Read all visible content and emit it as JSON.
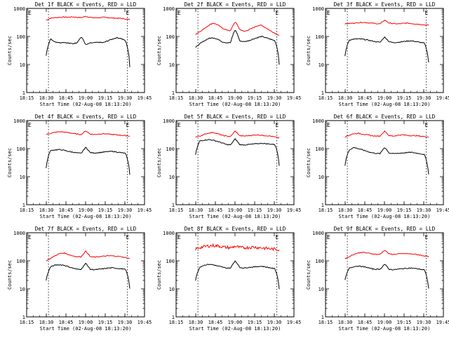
{
  "chart_data": [
    {
      "type": "line",
      "title": "Det 1f BLACK = Events, RED = LLD",
      "xlabel": "Start Time (02-Aug-08 18:13:20)",
      "ylabel": "Counts/sec",
      "yscale": "log",
      "ylim": [
        1,
        1000
      ],
      "xticks": [
        "18:15",
        "18:30",
        "18:45",
        "19:00",
        "19:15",
        "19:30",
        "19:45"
      ],
      "yticks": [
        "1",
        "10",
        "100",
        "1000"
      ],
      "markers": [
        "E",
        "E"
      ],
      "series": [
        {
          "color": "#ff0000",
          "values": [
            380,
            450,
            470,
            480,
            490,
            485,
            500,
            480,
            470,
            520,
            480,
            460,
            470,
            480,
            470,
            455,
            450,
            440,
            420,
            400
          ]
        },
        {
          "color": "#000000",
          "values": [
            20,
            80,
            65,
            60,
            62,
            58,
            55,
            60,
            95,
            50,
            58,
            60,
            62,
            60,
            70,
            80,
            90,
            85,
            70,
            8
          ]
        }
      ]
    },
    {
      "type": "line",
      "title": "Det 2f BLACK = Events, RED = LLD",
      "xlabel": "Start Time (02-Aug-08 18:13:20)",
      "ylabel": "Counts/sec",
      "yscale": "log",
      "ylim": [
        1,
        1000
      ],
      "xticks": [
        "18:15",
        "18:30",
        "18:45",
        "19:00",
        "19:15",
        "19:30",
        "19:45"
      ],
      "yticks": [
        "1",
        "10",
        "100",
        "1000"
      ],
      "markers": [
        "E",
        "E"
      ],
      "series": [
        {
          "color": "#ff0000",
          "values": [
            120,
            150,
            190,
            250,
            300,
            260,
            200,
            170,
            160,
            330,
            180,
            150,
            170,
            200,
            240,
            250,
            200,
            160,
            130,
            110
          ]
        },
        {
          "color": "#000000",
          "values": [
            40,
            55,
            70,
            85,
            90,
            80,
            65,
            60,
            60,
            170,
            70,
            65,
            70,
            80,
            90,
            100,
            90,
            80,
            70,
            10
          ]
        }
      ]
    },
    {
      "type": "line",
      "title": "Det 3f BLACK = Events, RED = LLD",
      "xlabel": "Start Time (02-Aug-08 18:13:20)",
      "ylabel": "Counts/sec",
      "yscale": "log",
      "ylim": [
        1,
        1000
      ],
      "xticks": [
        "18:15",
        "18:30",
        "18:45",
        "19:00",
        "19:15",
        "19:30",
        "19:45"
      ],
      "yticks": [
        "1",
        "10",
        "100",
        "1000"
      ],
      "markers": [
        "E",
        "E"
      ],
      "series": [
        {
          "color": "#ff0000",
          "values": [
            280,
            290,
            300,
            310,
            320,
            310,
            300,
            290,
            280,
            380,
            300,
            290,
            280,
            290,
            300,
            290,
            280,
            270,
            260,
            250
          ]
        },
        {
          "color": "#000000",
          "values": [
            20,
            75,
            80,
            82,
            80,
            75,
            70,
            65,
            62,
            95,
            65,
            60,
            62,
            65,
            68,
            70,
            66,
            62,
            58,
            12
          ]
        }
      ]
    },
    {
      "type": "line",
      "title": "Det 4f BLACK = Events, RED = LLD",
      "xlabel": "Start Time (02-Aug-08 18:13:20)",
      "ylabel": "Counts/sec",
      "yscale": "log",
      "ylim": [
        1,
        1000
      ],
      "xticks": [
        "18:15",
        "18:30",
        "18:45",
        "19:00",
        "19:15",
        "19:30",
        "19:45"
      ],
      "yticks": [
        "1",
        "10",
        "100",
        "1000"
      ],
      "markers": [
        "E",
        "E"
      ],
      "series": [
        {
          "color": "#ff0000",
          "values": [
            320,
            350,
            380,
            400,
            390,
            370,
            350,
            330,
            320,
            430,
            330,
            320,
            330,
            340,
            330,
            320,
            310,
            300,
            290,
            280
          ]
        },
        {
          "color": "#000000",
          "values": [
            20,
            85,
            90,
            92,
            88,
            80,
            75,
            70,
            68,
            110,
            72,
            70,
            72,
            75,
            78,
            80,
            76,
            72,
            68,
            12
          ]
        }
      ]
    },
    {
      "type": "line",
      "title": "Det 5f BLACK = Events, RED = LLD",
      "xlabel": "Start Time (02-Aug-08 18:13:20)",
      "ylabel": "Counts/sec",
      "yscale": "log",
      "ylim": [
        1,
        1000
      ],
      "xticks": [
        "18:15",
        "18:30",
        "18:45",
        "19:00",
        "19:15",
        "19:30",
        "19:45"
      ],
      "yticks": [
        "1",
        "10",
        "100",
        "1000"
      ],
      "markers": [
        "E",
        "E"
      ],
      "series": [
        {
          "color": "#ff0000",
          "values": [
            260,
            280,
            320,
            360,
            380,
            340,
            300,
            280,
            270,
            420,
            290,
            280,
            290,
            300,
            310,
            300,
            290,
            280,
            260,
            240
          ]
        },
        {
          "color": "#000000",
          "values": [
            60,
            190,
            200,
            210,
            200,
            180,
            160,
            140,
            135,
            220,
            140,
            135,
            140,
            145,
            150,
            155,
            150,
            145,
            140,
            25
          ]
        }
      ]
    },
    {
      "type": "line",
      "title": "Det 6f BLACK = Events, RED = LLD",
      "xlabel": "Start Time (02-Aug-08 18:13:20)",
      "ylabel": "Counts/sec",
      "yscale": "log",
      "ylim": [
        1,
        1000
      ],
      "xticks": [
        "18:15",
        "18:30",
        "18:45",
        "19:00",
        "19:15",
        "19:30",
        "19:45"
      ],
      "yticks": [
        "1",
        "10",
        "100",
        "1000"
      ],
      "markers": [
        "E",
        "E"
      ],
      "series": [
        {
          "color": "#ff0000",
          "values": [
            260,
            300,
            340,
            350,
            330,
            310,
            290,
            280,
            280,
            420,
            290,
            280,
            300,
            310,
            300,
            290,
            290,
            280,
            270,
            260
          ]
        },
        {
          "color": "#000000",
          "values": [
            25,
            90,
            110,
            100,
            90,
            80,
            72,
            68,
            66,
            110,
            70,
            66,
            68,
            70,
            72,
            74,
            70,
            66,
            62,
            12
          ]
        }
      ]
    },
    {
      "type": "line",
      "title": "Det 7f BLACK = Events, RED = LLD",
      "xlabel": "Start Time (02-Aug-08 18:13:20)",
      "ylabel": "Counts/sec",
      "yscale": "log",
      "ylim": [
        1,
        1000
      ],
      "xticks": [
        "18:15",
        "18:30",
        "18:45",
        "19:00",
        "19:15",
        "19:30",
        "19:45"
      ],
      "yticks": [
        "1",
        "10",
        "100",
        "1000"
      ],
      "markers": [
        "E",
        "E"
      ],
      "series": [
        {
          "color": "#ff0000",
          "values": [
            100,
            120,
            150,
            180,
            190,
            170,
            150,
            140,
            140,
            220,
            140,
            135,
            140,
            145,
            150,
            150,
            145,
            140,
            130,
            120
          ]
        },
        {
          "color": "#000000",
          "values": [
            20,
            60,
            70,
            72,
            70,
            62,
            55,
            50,
            50,
            80,
            50,
            48,
            50,
            52,
            55,
            56,
            54,
            52,
            50,
            10
          ]
        }
      ]
    },
    {
      "type": "line",
      "title": "Det 8f BLACK = Events, RED = LLD",
      "xlabel": "Start Time (02-Aug-08 18:13:20)",
      "ylabel": "Counts/sec",
      "yscale": "log",
      "ylim": [
        1,
        1000
      ],
      "xticks": [
        "18:15",
        "18:30",
        "18:45",
        "19:00",
        "19:15",
        "19:30",
        "19:45"
      ],
      "yticks": [
        "1",
        "10",
        "100",
        "1000"
      ],
      "markers": [
        "E",
        "E"
      ],
      "series": [
        {
          "color": "#ff0000",
          "values": [
            260,
            300,
            320,
            340,
            350,
            340,
            320,
            300,
            290,
            330,
            300,
            290,
            300,
            310,
            300,
            290,
            280,
            270,
            260,
            250
          ]
        },
        {
          "color": "#000000",
          "values": [
            20,
            60,
            70,
            75,
            72,
            65,
            60,
            55,
            55,
            100,
            58,
            55,
            58,
            60,
            62,
            64,
            60,
            56,
            52,
            10
          ]
        }
      ]
    },
    {
      "type": "line",
      "title": "Det 9f BLACK = Events, RED = LLD",
      "xlabel": "Start Time (02-Aug-08 18:13:20)",
      "ylabel": "Counts/sec",
      "yscale": "log",
      "ylim": [
        1,
        1000
      ],
      "xticks": [
        "18:15",
        "18:30",
        "18:45",
        "19:00",
        "19:15",
        "19:30",
        "19:45"
      ],
      "yticks": [
        "1",
        "10",
        "100",
        "1000"
      ],
      "markers": [
        "E",
        "E"
      ],
      "series": [
        {
          "color": "#ff0000",
          "values": [
            120,
            140,
            170,
            190,
            200,
            190,
            180,
            170,
            170,
            240,
            175,
            170,
            175,
            180,
            180,
            175,
            170,
            160,
            150,
            140
          ]
        },
        {
          "color": "#000000",
          "values": [
            20,
            55,
            62,
            65,
            62,
            58,
            52,
            50,
            50,
            75,
            50,
            48,
            50,
            52,
            54,
            55,
            53,
            50,
            48,
            10
          ]
        }
      ]
    }
  ]
}
